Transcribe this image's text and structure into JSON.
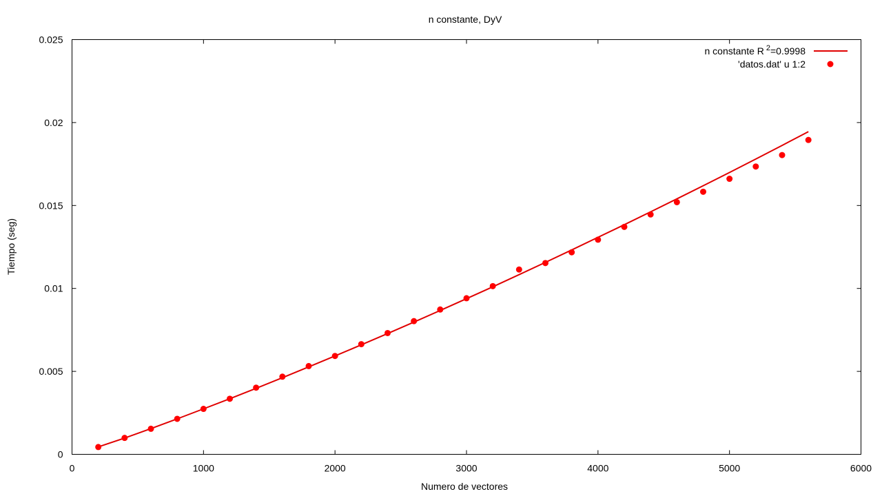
{
  "chart_data": {
    "type": "scatter",
    "title": "n constante, DyV",
    "xlabel": "Numero de vectores",
    "ylabel": "Tiempo (seg)",
    "xlim": [
      0,
      6000
    ],
    "ylim": [
      0,
      0.025
    ],
    "grid": false,
    "legend_position": "top-right",
    "x_ticks": [
      0,
      1000,
      2000,
      3000,
      4000,
      5000,
      6000
    ],
    "x_tick_labels": [
      "0",
      "1000",
      "2000",
      "3000",
      "4000",
      "5000",
      "6000"
    ],
    "y_ticks": [
      0,
      0.005,
      0.01,
      0.015,
      0.02,
      0.025
    ],
    "y_tick_labels": [
      "0",
      "0.005",
      "0.01",
      "0.015",
      "0.02",
      "0.025"
    ],
    "fit": {
      "legend_prefix": "n constante R",
      "legend_sup": "2",
      "legend_suffix": "=0.9998",
      "color": "#e00000",
      "x": [
        200,
        400,
        600,
        800,
        1000,
        1200,
        1400,
        1600,
        1800,
        2000,
        2200,
        2400,
        2600,
        2800,
        3000,
        3200,
        3400,
        3600,
        3800,
        4000,
        4200,
        4400,
        4600,
        4800,
        5000,
        5200,
        5400,
        5600
      ],
      "y": [
        0.00045,
        0.00098,
        0.00155,
        0.00214,
        0.00274,
        0.00335,
        0.00398,
        0.00462,
        0.00527,
        0.00593,
        0.0066,
        0.00728,
        0.00797,
        0.00867,
        0.00938,
        0.0101,
        0.01083,
        0.01157,
        0.01232,
        0.01308,
        0.01384,
        0.01462,
        0.0154,
        0.01619,
        0.01699,
        0.0178,
        0.01862,
        0.01945
      ]
    },
    "points": {
      "name": "'datos.dat' u 1:2",
      "color": "#ff0000",
      "x": [
        200,
        400,
        600,
        800,
        1000,
        1200,
        1400,
        1600,
        1800,
        2000,
        2200,
        2400,
        2600,
        2800,
        3000,
        3200,
        3400,
        3600,
        3800,
        4000,
        4200,
        4400,
        4600,
        4800,
        5000,
        5200,
        5400,
        5600
      ],
      "y": [
        0.00044,
        0.00099,
        0.00154,
        0.00214,
        0.00274,
        0.00335,
        0.00402,
        0.00468,
        0.00532,
        0.00593,
        0.00664,
        0.00731,
        0.00803,
        0.00873,
        0.00941,
        0.01014,
        0.01114,
        0.01153,
        0.01218,
        0.01294,
        0.01371,
        0.01446,
        0.0152,
        0.01583,
        0.01661,
        0.01735,
        0.01804,
        0.01895
      ]
    }
  }
}
